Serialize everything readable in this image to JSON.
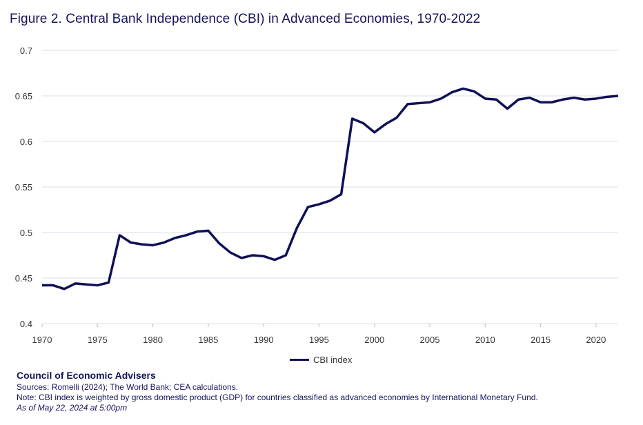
{
  "title": "Figure 2. Central Bank Independence (CBI) in Advanced Economies, 1970-2022",
  "chart_data": {
    "type": "line",
    "title": "Figure 2. Central Bank Independence (CBI) in Advanced Economies, 1970-2022",
    "xlabel": "",
    "ylabel": "",
    "xlim": [
      1970,
      2022
    ],
    "ylim": [
      0.4,
      0.7
    ],
    "x_ticks": [
      1970,
      1975,
      1980,
      1985,
      1990,
      1995,
      2000,
      2005,
      2010,
      2015,
      2020
    ],
    "y_ticks": [
      "0.4",
      "0.45",
      "0.5",
      "0.55",
      "0.6",
      "0.65",
      "0.7"
    ],
    "grid": "horizontal",
    "legend": "bottom",
    "color": "#0f1056",
    "x": [
      1970,
      1971,
      1972,
      1973,
      1974,
      1975,
      1976,
      1977,
      1978,
      1979,
      1980,
      1981,
      1982,
      1983,
      1984,
      1985,
      1986,
      1987,
      1988,
      1989,
      1990,
      1991,
      1992,
      1993,
      1994,
      1995,
      1996,
      1997,
      1998,
      1999,
      2000,
      2001,
      2002,
      2003,
      2004,
      2005,
      2006,
      2007,
      2008,
      2009,
      2010,
      2011,
      2012,
      2013,
      2014,
      2015,
      2016,
      2017,
      2018,
      2019,
      2020,
      2021,
      2022
    ],
    "series": [
      {
        "name": "CBI index",
        "values": [
          0.442,
          0.442,
          0.438,
          0.444,
          0.443,
          0.442,
          0.445,
          0.497,
          0.489,
          0.487,
          0.486,
          0.489,
          0.494,
          0.497,
          0.501,
          0.502,
          0.488,
          0.478,
          0.472,
          0.475,
          0.474,
          0.47,
          0.475,
          0.505,
          0.528,
          0.531,
          0.535,
          0.542,
          0.625,
          0.62,
          0.61,
          0.619,
          0.626,
          0.641,
          0.642,
          0.643,
          0.647,
          0.654,
          0.658,
          0.655,
          0.647,
          0.646,
          0.636,
          0.646,
          0.648,
          0.643,
          0.643,
          0.646,
          0.648,
          0.646,
          0.647,
          0.649,
          0.65
        ]
      }
    ]
  },
  "footer": {
    "org": "Council of Economic Advisers",
    "sources": "Sources: Romelli (2024); The World Bank; CEA calculations.",
    "note": "Note: CBI index is weighted by gross domestic product (GDP) for countries classified as advanced economies by International Monetary Fund.",
    "as_of": "As of May 22, 2024 at 5:00pm"
  }
}
